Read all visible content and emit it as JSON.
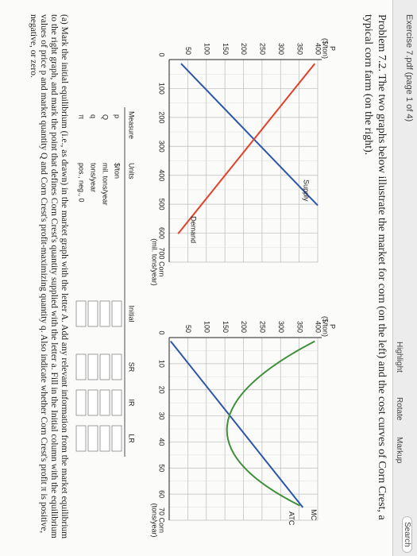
{
  "header": {
    "title": "Exercise 7.pdf (page 1 of 4)",
    "tools": [
      "Highlight",
      "Rotate",
      "Markup"
    ],
    "search": "Search"
  },
  "problem": "Problem 7.2. The two graphs below illustrate the market for corn (on the left) and the cost curves of Corn Crest, a typical corn farm (on the right).",
  "market_graph": {
    "y_label": "P",
    "y_unit": "($/ton)",
    "y_ticks": [
      "50",
      "100",
      "150",
      "200",
      "250",
      "300",
      "350",
      "400"
    ],
    "x_origin": "0",
    "x_ticks": [
      "100",
      "200",
      "300",
      "400",
      "500",
      "600"
    ],
    "x_label": "700 Corn",
    "x_unit": "(mil. tons/year)",
    "supply": "Supply",
    "demand": "Demand"
  },
  "firm_graph": {
    "y_label": "P",
    "y_unit": "($/ton)",
    "y_ticks": [
      "50",
      "100",
      "150",
      "200",
      "250",
      "300",
      "350",
      "400"
    ],
    "x_origin": "0",
    "x_ticks": [
      "10",
      "20",
      "30",
      "40",
      "50",
      "60"
    ],
    "x_label": "70 Corn",
    "x_unit": "(tons/year)",
    "mc": "MC",
    "atc": "ATC"
  },
  "table": {
    "columns": [
      "Measure",
      "Units",
      "Initial",
      "SR",
      "IR",
      "LR"
    ],
    "rows": [
      [
        "p",
        "$/ton"
      ],
      [
        "Q",
        "mil. tons/year"
      ],
      [
        "q",
        "tons/year"
      ],
      [
        "π",
        "pos., neg., 0"
      ]
    ]
  },
  "question": "(a) Mark the initial equilibrium (i.e., as drawn) in the market graph with the letter A. Add any relevant information from the market equilibrium to the right graph, and mark the point that defines Corn Crest's quantity supplied with the letter a. Fill in the Initial column with the equilibrium values of price p and market quantity Q and Corn Crest's profit-maximizing quantity q. Also indicate whether Corn Crest's profit π is positive, negative, or zero."
}
